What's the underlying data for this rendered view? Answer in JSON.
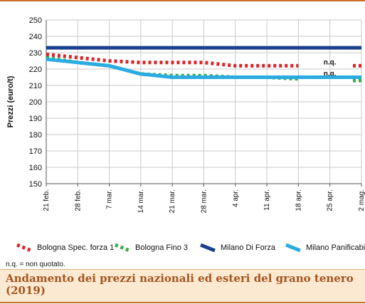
{
  "chart_data": {
    "type": "line",
    "title": "",
    "ylabel": "Prezzi (euro/t)",
    "xlabel": "",
    "ylim": [
      150,
      250
    ],
    "yticks": [
      "150",
      "160",
      "170",
      "180",
      "190",
      "200",
      "210",
      "220",
      "230",
      "240",
      "250"
    ],
    "categories": [
      "21 feb.",
      "28 feb.",
      "7 mar.",
      "14 mar.",
      "21 mar.",
      "28 mar.",
      "4 apr.",
      "11 apr.",
      "18 apr.",
      "25 apr.",
      "2 mag."
    ],
    "grid": true,
    "legend_position": "bottom",
    "series": [
      {
        "name": "Bologna Spec. forza 1",
        "color": "#d9242a",
        "style": "dotted",
        "segments": [
          [
            [
              0,
              229
            ],
            [
              1,
              227
            ],
            [
              2,
              225
            ],
            [
              3,
              224
            ],
            [
              4,
              224
            ],
            [
              5,
              224
            ],
            [
              6,
              222
            ],
            [
              7,
              222
            ],
            [
              8,
              222
            ]
          ],
          [
            [
              10,
              222
            ]
          ]
        ],
        "labels": [
          {
            "x": 9,
            "y": 222,
            "text": "n.q."
          }
        ]
      },
      {
        "name": "Bologna Fino 3",
        "color": "#3aaa48",
        "style": "dotted",
        "segments": [
          [
            [
              0,
              227
            ],
            [
              1,
              224
            ],
            [
              2,
              222
            ],
            [
              3,
              217
            ],
            [
              4,
              216
            ],
            [
              5,
              216
            ],
            [
              6,
              215
            ],
            [
              7,
              215
            ],
            [
              8,
              214
            ]
          ],
          [
            [
              10,
              213
            ]
          ]
        ],
        "labels": [
          {
            "x": 9,
            "y": 215,
            "text": "n.q."
          }
        ]
      },
      {
        "name": "Milano Di Forza",
        "color": "#1c3f8f",
        "style": "solid",
        "segments": [
          [
            [
              0,
              233
            ],
            [
              1,
              233
            ],
            [
              2,
              233
            ],
            [
              3,
              233
            ],
            [
              4,
              233
            ],
            [
              5,
              233
            ],
            [
              6,
              233
            ],
            [
              7,
              233
            ],
            [
              8,
              233
            ],
            [
              9,
              233
            ],
            [
              10,
              233
            ]
          ]
        ],
        "labels": []
      },
      {
        "name": "Milano Panificabile",
        "color": "#2aace2",
        "style": "solid",
        "segments": [
          [
            [
              0,
              226
            ],
            [
              1,
              224
            ],
            [
              2,
              222
            ],
            [
              3,
              217
            ],
            [
              4,
              215
            ],
            [
              5,
              215
            ],
            [
              6,
              215
            ],
            [
              7,
              215
            ],
            [
              8,
              215
            ],
            [
              9,
              215
            ],
            [
              10,
              215
            ]
          ]
        ],
        "labels": []
      }
    ]
  },
  "note": "n.q. = non quotato.",
  "caption": "Andamento dei prezzi nazionali ed esteri del grano tenero (2019)"
}
